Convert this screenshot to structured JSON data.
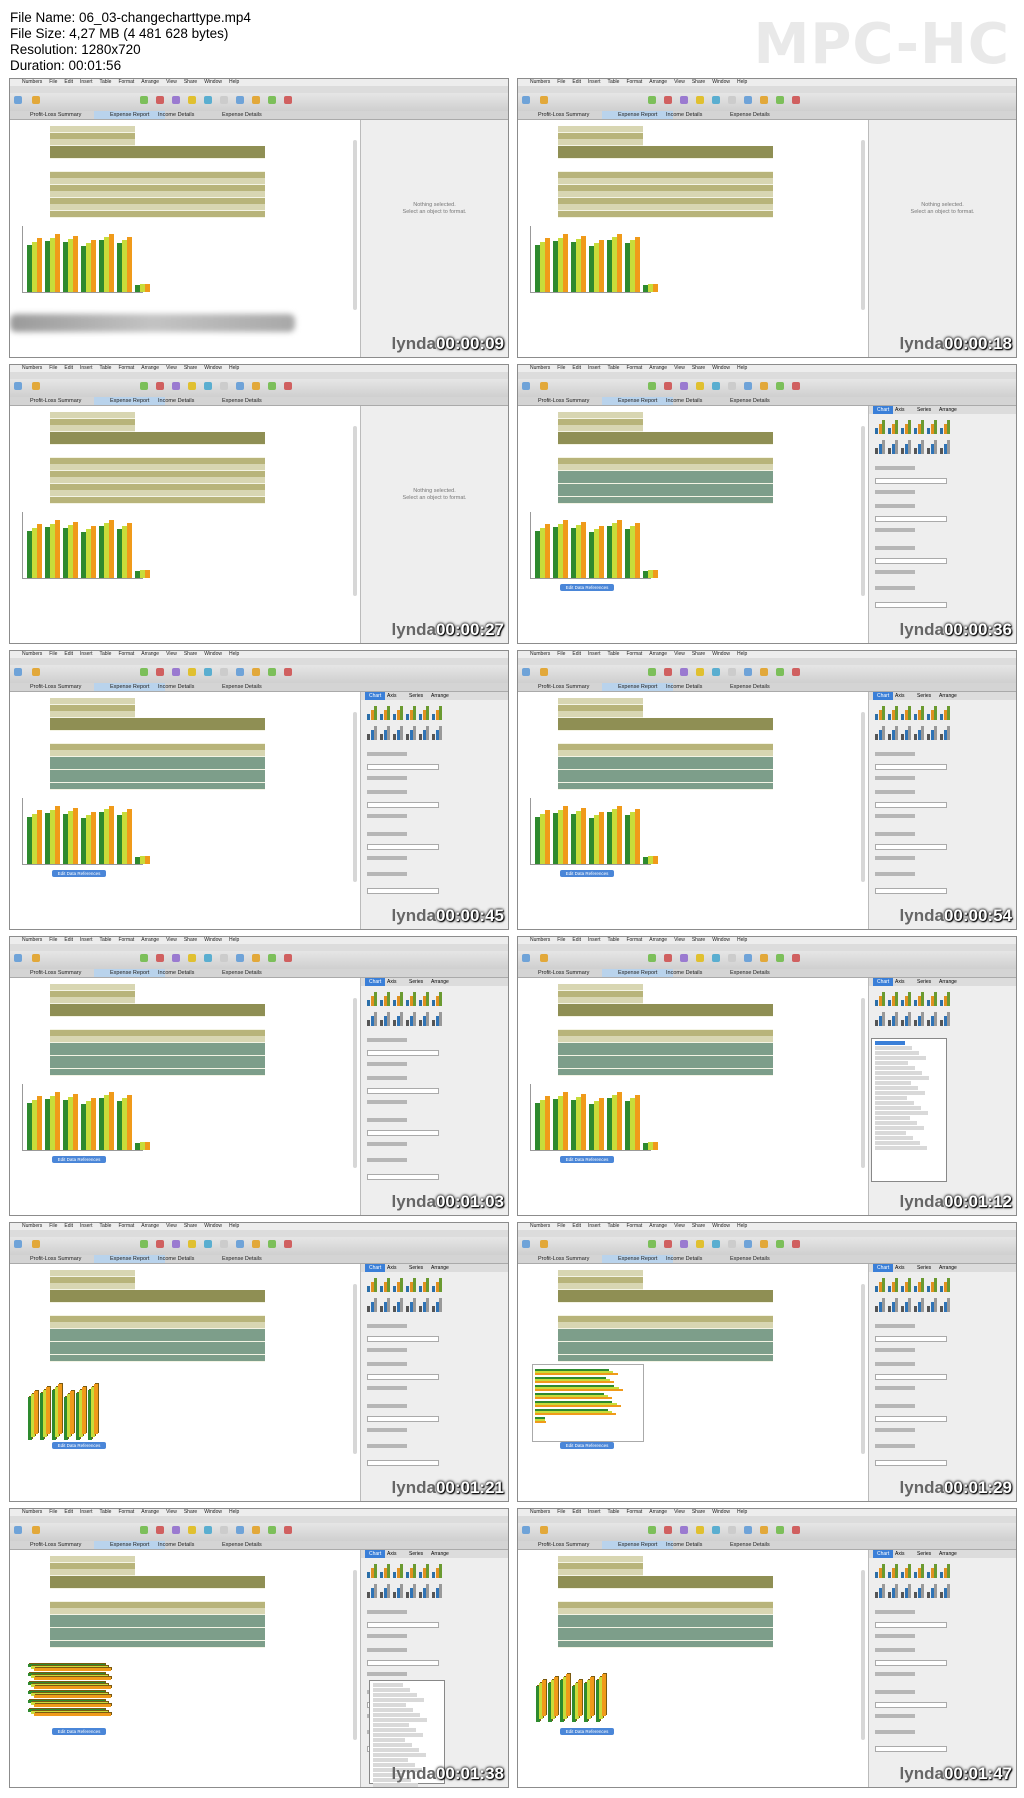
{
  "file_info": {
    "file_name": "File Name: 06_03-changecharttype.mp4",
    "file_size": "File Size: 4,27 MB (4 481 628 bytes)",
    "resolution": "Resolution: 1280x720",
    "duration": "Duration: 00:01:56"
  },
  "player_logo": "MPC-HC",
  "menu_items": [
    "Numbers",
    "File",
    "Edit",
    "Insert",
    "Table",
    "Format",
    "Arrange",
    "View",
    "Share",
    "Window",
    "Help"
  ],
  "sheet_tabs": [
    "Profit-Loss Summary",
    "Expense Report",
    "Income Details",
    "Expense Details"
  ],
  "inspector_tabs": [
    "Chart",
    "Axis",
    "Series",
    "Arrange"
  ],
  "inspector_empty": [
    "Nothing selected.",
    "Select an object to format."
  ],
  "edit_refs_label": "Edit Data References",
  "watermark": "lynda",
  "colors": {
    "bar_green": "#2e8a2e",
    "bar_light": "#c8dc3a",
    "bar_orange": "#f09a1a",
    "table_header": "#8f8f54",
    "table_row": "#b8b47a",
    "selected_blue": "#3a7fd8"
  },
  "frames": [
    {
      "time": "00:00:09",
      "state": "empty"
    },
    {
      "time": "00:00:18",
      "state": "empty"
    },
    {
      "time": "00:00:27",
      "state": "empty"
    },
    {
      "time": "00:00:36",
      "state": "chart-inspector"
    },
    {
      "time": "00:00:45",
      "state": "chart-inspector"
    },
    {
      "time": "00:00:54",
      "state": "chart-inspector"
    },
    {
      "time": "00:01:03",
      "state": "chart-inspector"
    },
    {
      "time": "00:01:12",
      "state": "chart-dropdown"
    },
    {
      "time": "00:01:21",
      "state": "chart-3d"
    },
    {
      "time": "00:01:29",
      "state": "chart-bar"
    },
    {
      "time": "00:01:38",
      "state": "chart-3d-bar"
    },
    {
      "time": "00:01:47",
      "state": "chart-3d-final"
    }
  ]
}
